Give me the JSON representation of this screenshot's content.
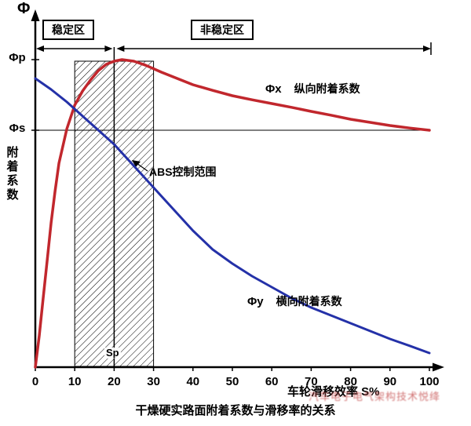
{
  "caption": "干燥硬实路面附着系数与滑移率的关系",
  "watermark": "汽车电子电气架构技术悦绛",
  "labels": {
    "phi": "Φ",
    "phi_p": "Φp",
    "phi_s": "Φs",
    "sp": "Sp",
    "y_axis": "附着系数",
    "x_axis": "车轮滑移效率 S%"
  },
  "zones": {
    "stable": "稳定区",
    "unstable": "非稳定区"
  },
  "annotations": {
    "longitudinal_symbol": "Φx",
    "longitudinal": "纵向附着系数",
    "abs_range": "ABS控制范围",
    "lateral_symbol": "Φy",
    "lateral": "横向附着系数"
  },
  "chart_data": {
    "type": "line",
    "title": "干燥硬实路面附着系数与滑移率的关系",
    "xlabel": "车轮滑移效率 S%",
    "ylabel": "附着系数 Φ",
    "xlim": [
      0,
      100
    ],
    "ylim": [
      0,
      1.05
    ],
    "x_ticks": [
      0,
      10,
      20,
      30,
      40,
      50,
      60,
      70,
      80,
      90,
      100
    ],
    "grid": false,
    "phi_p": 0.98,
    "phi_s": 0.755,
    "sp": 20,
    "abs_control_range": [
      10,
      30
    ],
    "stable_zone": [
      0,
      20
    ],
    "unstable_zone": [
      20,
      100
    ],
    "series": [
      {
        "key": "longitudinal",
        "name": "Φx 纵向附着系数",
        "color": "#c1272d",
        "width": 3.5,
        "x": [
          0,
          1,
          2,
          3,
          4,
          5,
          6,
          8,
          10,
          12,
          14,
          16,
          18,
          20,
          22,
          25,
          28,
          32,
          36,
          40,
          45,
          50,
          55,
          60,
          65,
          70,
          75,
          80,
          85,
          90,
          95,
          100
        ],
        "y": [
          0,
          0.1,
          0.22,
          0.34,
          0.46,
          0.56,
          0.65,
          0.76,
          0.835,
          0.88,
          0.915,
          0.945,
          0.965,
          0.975,
          0.98,
          0.975,
          0.962,
          0.94,
          0.92,
          0.9,
          0.882,
          0.865,
          0.852,
          0.84,
          0.828,
          0.815,
          0.803,
          0.79,
          0.78,
          0.77,
          0.762,
          0.755
        ]
      },
      {
        "key": "lateral",
        "name": "Φy 横向附着系数",
        "color": "#2431a8",
        "width": 3,
        "x": [
          0,
          4,
          8,
          12,
          16,
          20,
          24,
          28,
          32,
          36,
          40,
          45,
          50,
          55,
          60,
          65,
          70,
          75,
          80,
          85,
          90,
          95,
          100
        ],
        "y": [
          0.92,
          0.885,
          0.845,
          0.8,
          0.755,
          0.71,
          0.655,
          0.6,
          0.545,
          0.49,
          0.435,
          0.375,
          0.33,
          0.29,
          0.255,
          0.22,
          0.19,
          0.165,
          0.14,
          0.115,
          0.09,
          0.068,
          0.045
        ]
      }
    ]
  }
}
